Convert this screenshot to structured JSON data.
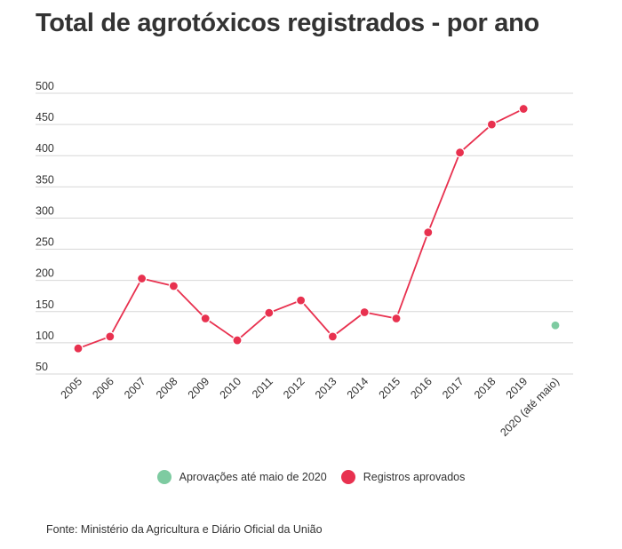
{
  "title": "Total de agrotóxicos registrados - por ano",
  "source": "Fonte: Ministério da Agricultura e Diário Oficial da União",
  "chart_data": {
    "type": "line",
    "title": "Total de agrotóxicos registrados - por ano",
    "xlabel": "",
    "ylabel": "",
    "ylim": [
      50,
      500
    ],
    "yticks": [
      "50",
      "100",
      "150",
      "200",
      "250",
      "300",
      "350",
      "400",
      "450",
      "500"
    ],
    "grid": true,
    "legend_placement": "bottom",
    "categories": [
      "2005",
      "2006",
      "2007",
      "2008",
      "2009",
      "2010",
      "2011",
      "2012",
      "2013",
      "2014",
      "2015",
      "2016",
      "2017",
      "2018",
      "2019",
      "2020 (até maio)"
    ],
    "series": [
      {
        "name": "Registros aprovados",
        "color": "#e8314f",
        "line": true,
        "values": [
          91,
          110,
          203,
          191,
          139,
          104,
          148,
          168,
          110,
          149,
          139,
          277,
          405,
          450,
          475,
          null
        ]
      },
      {
        "name": "Aprovações até maio de 2020",
        "color": "#7ecba1",
        "line": false,
        "values": [
          null,
          null,
          null,
          null,
          null,
          null,
          null,
          null,
          null,
          null,
          null,
          null,
          null,
          null,
          null,
          128
        ]
      }
    ]
  }
}
